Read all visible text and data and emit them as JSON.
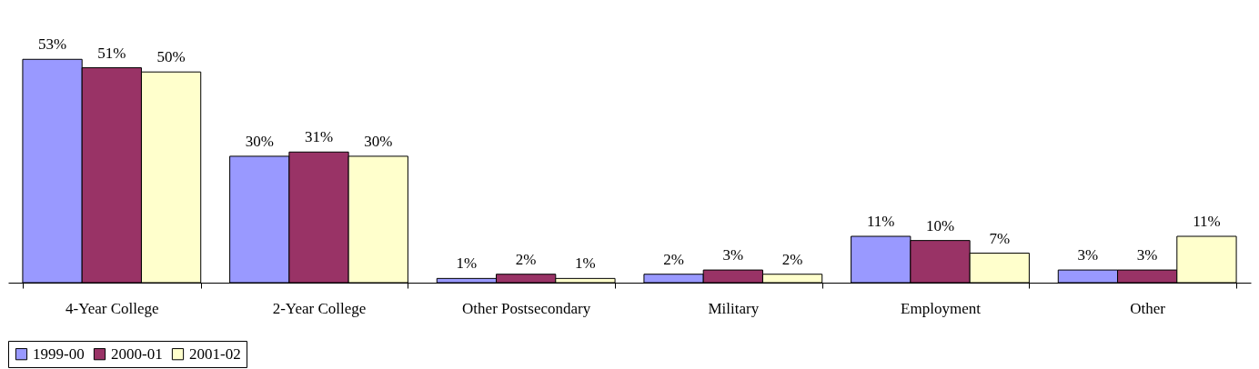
{
  "chart_data": {
    "type": "bar",
    "categories": [
      "4-Year College",
      "2-Year College",
      "Other Postsecondary",
      "Military",
      "Employment",
      "Other"
    ],
    "series": [
      {
        "name": "1999-00",
        "color": "#9999ff",
        "values": [
          53,
          30,
          1,
          2,
          11,
          3
        ],
        "value_labels": [
          "53%",
          "30%",
          "1%",
          "2%",
          "11%",
          "3%"
        ]
      },
      {
        "name": "2000-01",
        "color": "#993366",
        "values": [
          51,
          31,
          2,
          3,
          10,
          3
        ],
        "value_labels": [
          "51%",
          "31%",
          "2%",
          "3%",
          "10%",
          "3%"
        ]
      },
      {
        "name": "2001-02",
        "color": "#ffffcc",
        "values": [
          50,
          30,
          1,
          2,
          7,
          11
        ],
        "value_labels": [
          "50%",
          "30%",
          "1%",
          "2%",
          "7%",
          "11%"
        ]
      }
    ],
    "legend": "bottom"
  }
}
